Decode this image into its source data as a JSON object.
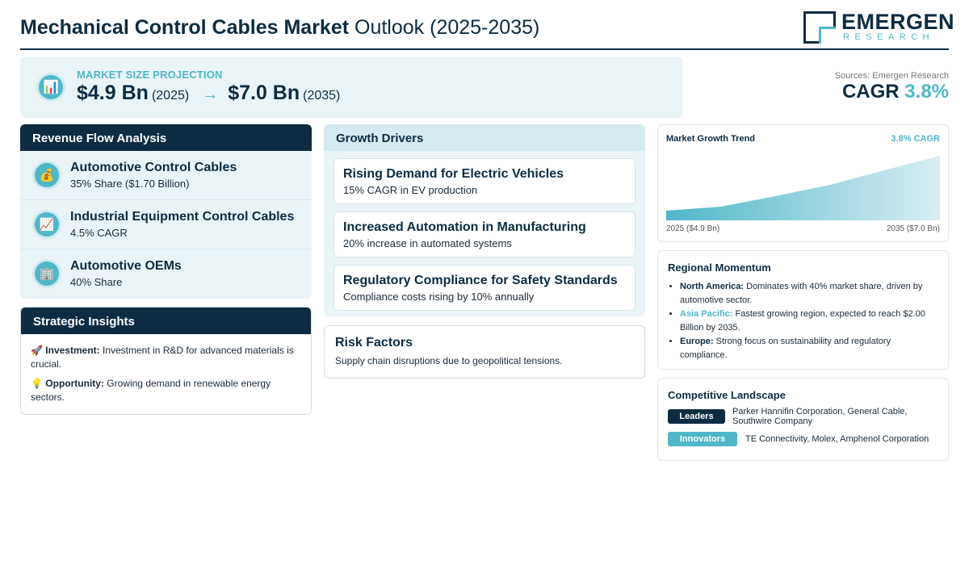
{
  "header": {
    "title_bold": "Mechanical Control Cables Market",
    "title_rest": "Outlook (2025-2035)",
    "logo_main": "EMERGEN",
    "logo_sub": "RESEARCH"
  },
  "projection": {
    "icon": "bar-chart-icon",
    "label": "MARKET SIZE PROJECTION",
    "start_value": "$4.9 Bn",
    "start_year": "(2025)",
    "arrow": "→",
    "end_value": "$7.0 Bn",
    "end_year": "(2035)"
  },
  "summary": {
    "sources": "Sources: Emergen Research",
    "cagr_label": "CAGR",
    "cagr_value": "3.8%"
  },
  "revenue": {
    "title": "Revenue Flow Analysis",
    "items": [
      {
        "icon": "money-bag-icon",
        "glyph": "💰",
        "title": "Automotive Control Cables",
        "sub": "35% Share ($1.70 Billion)"
      },
      {
        "icon": "trend-chart-icon",
        "glyph": "📈",
        "title": "Industrial Equipment Control Cables",
        "sub": "4.5% CAGR"
      },
      {
        "icon": "building-icon",
        "glyph": "🏢",
        "title": "Automotive OEMs",
        "sub": "40% Share"
      }
    ]
  },
  "strategic": {
    "title": "Strategic Insights",
    "investment_icon": "🚀",
    "investment_label": "Investment:",
    "investment_text": "Investment in R&D for advanced materials is crucial.",
    "opportunity_icon": "💡",
    "opportunity_label": "Opportunity:",
    "opportunity_text": "Growing demand in renewable energy sectors."
  },
  "growth": {
    "title": "Growth Drivers",
    "drivers": [
      {
        "title": "Rising Demand for Electric Vehicles",
        "sub": "15% CAGR in EV production"
      },
      {
        "title": "Increased Automation in Manufacturing",
        "sub": "20% increase in automated systems"
      },
      {
        "title": "Regulatory Compliance for Safety Standards",
        "sub": "Compliance costs rising by 10% annually"
      }
    ]
  },
  "risk": {
    "title": "Risk Factors",
    "text": "Supply chain disruptions due to geopolitical tensions."
  },
  "trend": {
    "title": "Market Growth Trend",
    "cagr": "3.8% CAGR",
    "start_label": "2025 ($4.9 Bn)",
    "end_label": "2035 ($7.0 Bn)"
  },
  "regional": {
    "title": "Regional Momentum",
    "items": [
      {
        "name": "North America:",
        "text": "Dominates with 40% market share, driven by automotive sector."
      },
      {
        "name": "Asia Pacific:",
        "text": "Fastest growing region, expected to reach $2.00 Billion by 2035."
      },
      {
        "name": "Europe:",
        "text": "Strong focus on sustainability and regulatory compliance."
      }
    ]
  },
  "competitive": {
    "title": "Competitive Landscape",
    "leaders_label": "Leaders",
    "leaders_text": "Parker Hannifin Corporation, General Cable, Southwire Company",
    "innovators_label": "Innovators",
    "innovators_text": "TE Connectivity, Molex, Amphenol Corporation"
  },
  "colors": {
    "navy": "#0d2c42",
    "teal": "#4fb7c8",
    "panel_bg": "#eaf4f7"
  }
}
